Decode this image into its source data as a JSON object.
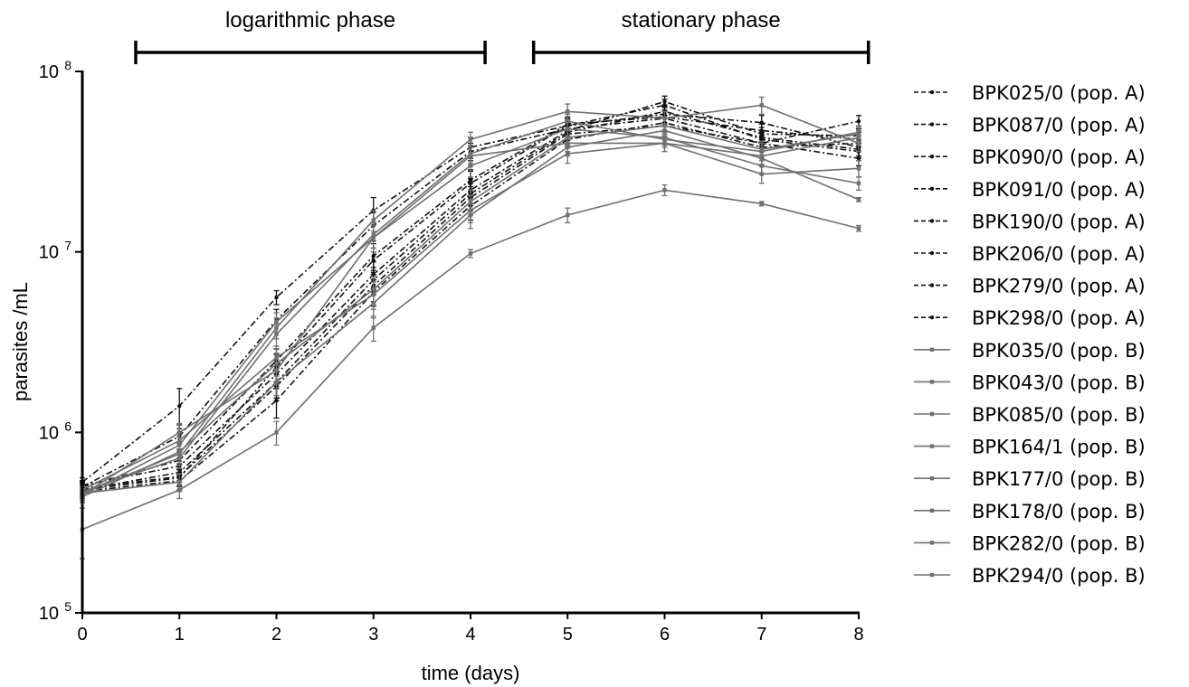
{
  "chart_data": {
    "type": "line",
    "xlabel": "time (days)",
    "ylabel": "parasites /mL",
    "xlim": [
      0,
      8
    ],
    "ylim": [
      100000,
      100000000
    ],
    "y_scale": "log",
    "x_ticks": [
      "0",
      "1",
      "2",
      "3",
      "4",
      "5",
      "6",
      "7",
      "8"
    ],
    "y_ticks": [
      {
        "base": "10",
        "exp": "5",
        "value": 100000
      },
      {
        "base": "10",
        "exp": "6",
        "value": 1000000
      },
      {
        "base": "10",
        "exp": "7",
        "value": 10000000
      },
      {
        "base": "10",
        "exp": "8",
        "value": 100000000
      }
    ],
    "grid": false,
    "legend_position": "right",
    "phases": [
      {
        "label": "logarithmic phase",
        "x_start": 0.55,
        "x_end": 4.15
      },
      {
        "label": "stationary phase",
        "x_start": 4.65,
        "x_end": 8.1
      }
    ],
    "x": [
      0,
      1,
      2,
      3,
      4,
      5,
      6,
      7,
      8
    ],
    "series": [
      {
        "name": "BPK025/0 (pop. A)",
        "style": "dashed",
        "color": "#111111",
        "values": [
          530000,
          1400000,
          5600000,
          17000000,
          38000000,
          50000000,
          65000000,
          42000000,
          36000000
        ],
        "errors": [
          30000,
          350000,
          500000,
          3000000,
          5000000,
          4000000,
          5000000,
          4000000,
          4000000
        ]
      },
      {
        "name": "BPK087/0 (pop. A)",
        "style": "dashed",
        "color": "#111111",
        "values": [
          500000,
          950000,
          4200000,
          14000000,
          36000000,
          48000000,
          55000000,
          40000000,
          33000000
        ],
        "errors": [
          30000,
          150000,
          600000,
          2500000,
          4000000,
          4000000,
          5000000,
          4000000,
          3000000
        ]
      },
      {
        "name": "BPK090/0 (pop. A)",
        "style": "dashed",
        "color": "#111111",
        "values": [
          480000,
          560000,
          2300000,
          9000000,
          24000000,
          50000000,
          58000000,
          52000000,
          38000000
        ],
        "errors": [
          30000,
          60000,
          400000,
          1500000,
          4000000,
          5000000,
          6000000,
          5000000,
          4000000
        ]
      },
      {
        "name": "BPK091/0 (pop. A)",
        "style": "dashed",
        "color": "#111111",
        "values": [
          490000,
          570000,
          1800000,
          6500000,
          20000000,
          45000000,
          50000000,
          40000000,
          53000000
        ],
        "errors": [
          30000,
          60000,
          300000,
          1200000,
          3000000,
          5000000,
          5000000,
          4000000,
          4000000
        ]
      },
      {
        "name": "BPK190/0 (pop. A)",
        "style": "dashed",
        "color": "#111111",
        "values": [
          510000,
          650000,
          2100000,
          7500000,
          22000000,
          47000000,
          68000000,
          45000000,
          44000000
        ],
        "errors": [
          30000,
          70000,
          350000,
          1300000,
          3500000,
          5000000,
          5000000,
          4000000,
          4000000
        ]
      },
      {
        "name": "BPK206/0 (pop. A)",
        "style": "dashed",
        "color": "#111111",
        "values": [
          470000,
          540000,
          1500000,
          6000000,
          18000000,
          42000000,
          52000000,
          38000000,
          40000000
        ],
        "errors": [
          30000,
          60000,
          300000,
          1000000,
          3000000,
          4000000,
          5000000,
          4000000,
          4000000
        ]
      },
      {
        "name": "BPK279/0 (pop. A)",
        "style": "dashed",
        "color": "#111111",
        "values": [
          500000,
          700000,
          2500000,
          9500000,
          25000000,
          51000000,
          56000000,
          47000000,
          42000000
        ],
        "errors": [
          30000,
          80000,
          400000,
          1600000,
          3500000,
          5000000,
          5000000,
          4000000,
          4000000
        ]
      },
      {
        "name": "BPK298/0 (pop. A)",
        "style": "dashed",
        "color": "#111111",
        "values": [
          480000,
          600000,
          1900000,
          7000000,
          21000000,
          46000000,
          60000000,
          43000000,
          37000000
        ],
        "errors": [
          30000,
          70000,
          350000,
          1200000,
          3000000,
          4500000,
          5000000,
          4000000,
          4000000
        ]
      },
      {
        "name": "BPK035/0 (pop. B)",
        "style": "solid",
        "color": "#707070",
        "values": [
          290000,
          480000,
          1000000,
          3800000,
          9800000,
          16000000,
          22000000,
          18500000,
          13500000
        ],
        "errors": [
          90000,
          50000,
          150000,
          600000,
          500000,
          1500000,
          1500000,
          500000,
          500000
        ]
      },
      {
        "name": "BPK043/0 (pop. B)",
        "style": "solid",
        "color": "#707070",
        "values": [
          460000,
          760000,
          3800000,
          15000000,
          42000000,
          60000000,
          55000000,
          65000000,
          40000000
        ],
        "errors": [
          30000,
          100000,
          500000,
          2000000,
          4000000,
          6000000,
          5000000,
          7000000,
          4000000
        ]
      },
      {
        "name": "BPK085/0 (pop. B)",
        "style": "solid",
        "color": "#707070",
        "values": [
          470000,
          720000,
          3500000,
          12500000,
          35000000,
          53000000,
          42000000,
          36000000,
          46000000
        ],
        "errors": [
          30000,
          90000,
          500000,
          2000000,
          4000000,
          5000000,
          4000000,
          4000000,
          4000000
        ]
      },
      {
        "name": "BPK164/1 (pop. B)",
        "style": "solid",
        "color": "#707070",
        "values": [
          450000,
          850000,
          4100000,
          12000000,
          30000000,
          48000000,
          43000000,
          30000000,
          24000000
        ],
        "errors": [
          30000,
          100000,
          500000,
          2000000,
          4000000,
          5000000,
          4000000,
          3000000,
          2000000
        ]
      },
      {
        "name": "BPK177/0 (pop. B)",
        "style": "solid",
        "color": "#707070",
        "values": [
          480000,
          900000,
          2600000,
          5800000,
          17000000,
          35000000,
          40000000,
          27000000,
          29000000
        ],
        "errors": [
          30000,
          100000,
          400000,
          1000000,
          2500000,
          4000000,
          4000000,
          3000000,
          3000000
        ]
      },
      {
        "name": "BPK178/0 (pop. B)",
        "style": "solid",
        "color": "#707070",
        "values": [
          460000,
          530000,
          1900000,
          5200000,
          16000000,
          38000000,
          47000000,
          33000000,
          19500000
        ],
        "errors": [
          30000,
          60000,
          300000,
          900000,
          2500000,
          4000000,
          4000000,
          3000000,
          500000
        ]
      },
      {
        "name": "BPK282/0 (pop. B)",
        "style": "solid",
        "color": "#707070",
        "values": [
          440000,
          780000,
          2400000,
          6200000,
          19000000,
          43000000,
          50000000,
          37000000,
          45000000
        ],
        "errors": [
          30000,
          90000,
          350000,
          1100000,
          3000000,
          4500000,
          5000000,
          4000000,
          4000000
        ]
      },
      {
        "name": "BPK294/0 (pop. B)",
        "style": "solid",
        "color": "#707070",
        "values": [
          450000,
          1000000,
          2200000,
          12000000,
          34000000,
          40000000,
          40000000,
          34000000,
          43000000
        ],
        "errors": [
          30000,
          120000,
          350000,
          2000000,
          4000000,
          4000000,
          4000000,
          3500000,
          4000000
        ]
      }
    ]
  }
}
